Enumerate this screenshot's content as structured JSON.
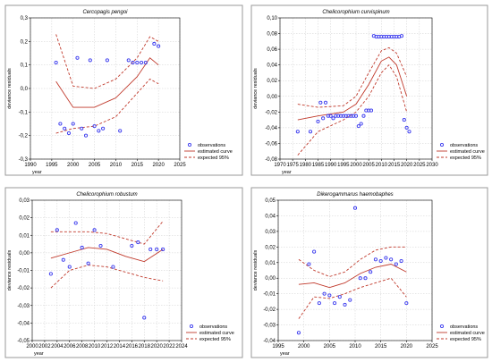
{
  "colors": {
    "observations": "#3a3aee",
    "curve": "#c0392b",
    "band": "#c0392b"
  },
  "chart_data": [
    {
      "type": "scatter",
      "title": "Cercopagis pengoi",
      "xlabel": "year",
      "ylabel": "deviance residuals",
      "xlim": [
        1990,
        2025
      ],
      "ylim": [
        -0.3,
        0.3
      ],
      "xticks": [
        1990,
        1995,
        2000,
        2005,
        2010,
        2015,
        2020,
        2025
      ],
      "xtick_labels": [
        "1990",
        "1995",
        "2000",
        "2005",
        "2010",
        "2015",
        "2020",
        "2025"
      ],
      "yticks": [
        -0.3,
        -0.2,
        -0.1,
        0,
        0.1,
        0.2,
        0.3
      ],
      "ytick_labels": [
        "-0,3",
        "-0,2",
        "-0,1",
        "0,0",
        "0,1",
        "0,2",
        "0,3"
      ],
      "grid": true,
      "legend": {
        "position": "bottom-right",
        "entries": [
          "observations",
          "estimated curve",
          "expected 95%"
        ]
      },
      "observations": {
        "x": [
          1996,
          1997,
          1998,
          1999,
          2000,
          2001,
          2002,
          2003,
          2004,
          2005,
          2006,
          2007,
          2008,
          2011,
          2013,
          2014,
          2015,
          2016,
          2017,
          2019,
          2020
        ],
        "y": [
          0.11,
          -0.15,
          -0.17,
          -0.19,
          -0.15,
          0.13,
          -0.17,
          -0.2,
          0.12,
          -0.16,
          -0.18,
          -0.17,
          0.12,
          -0.18,
          0.12,
          0.11,
          0.11,
          0.11,
          0.11,
          0.19,
          0.18
        ]
      },
      "estimated_curve": {
        "x": [
          1996,
          2000,
          2005,
          2010,
          2015,
          2018,
          2020
        ],
        "y": [
          0.03,
          -0.08,
          -0.08,
          -0.04,
          0.05,
          0.13,
          0.1
        ]
      },
      "upper_95": {
        "x": [
          1996,
          2000,
          2005,
          2010,
          2015,
          2018,
          2020
        ],
        "y": [
          0.23,
          0.01,
          0.0,
          0.04,
          0.13,
          0.22,
          0.2
        ]
      },
      "lower_95": {
        "x": [
          1996,
          2000,
          2005,
          2010,
          2015,
          2018,
          2020
        ],
        "y": [
          -0.19,
          -0.17,
          -0.16,
          -0.12,
          -0.02,
          0.04,
          0.02
        ]
      }
    },
    {
      "type": "scatter",
      "title": "Chelicorophium curvispinum",
      "xlabel": "year",
      "ylabel": "deviance residuals",
      "xlim": [
        1970,
        2030
      ],
      "ylim": [
        -0.08,
        0.1
      ],
      "xticks": [
        1970,
        1975,
        1980,
        1985,
        1990,
        1995,
        2000,
        2005,
        2010,
        2015,
        2020,
        2025,
        2030
      ],
      "xtick_labels": [
        "1970",
        "1975",
        "1980",
        "1985",
        "1990",
        "1995",
        "2000",
        "2005",
        "2010",
        "2015",
        "2020",
        "2025",
        "2030"
      ],
      "yticks": [
        -0.08,
        -0.06,
        -0.04,
        -0.02,
        0,
        0.02,
        0.04,
        0.06,
        0.08,
        0.1
      ],
      "ytick_labels": [
        "-0,08",
        "-0,06",
        "-0,04",
        "-0,02",
        "0,00",
        "0,02",
        "0,04",
        "0,06",
        "0,08",
        "0,10"
      ],
      "grid": true,
      "legend": {
        "position": "bottom-right",
        "entries": [
          "observations",
          "estimated curve",
          "expected 95%"
        ]
      },
      "observations": {
        "x": [
          1977,
          1982,
          1985,
          1986,
          1987,
          1988,
          1989,
          1990,
          1991,
          1992,
          1993,
          1994,
          1995,
          1996,
          1997,
          1998,
          1999,
          2000,
          2001,
          2002,
          2003,
          2004,
          2005,
          2006,
          2007,
          2008,
          2009,
          2010,
          2011,
          2012,
          2013,
          2014,
          2015,
          2016,
          2017,
          2018,
          2019,
          2020,
          2021
        ],
        "y": [
          -0.045,
          -0.045,
          -0.032,
          -0.008,
          -0.028,
          -0.008,
          -0.025,
          -0.025,
          -0.028,
          -0.025,
          -0.025,
          -0.025,
          -0.025,
          -0.025,
          -0.025,
          -0.025,
          -0.025,
          -0.025,
          -0.038,
          -0.035,
          -0.025,
          -0.018,
          -0.018,
          -0.018,
          0.077,
          0.076,
          0.076,
          0.076,
          0.076,
          0.076,
          0.076,
          0.076,
          0.076,
          0.076,
          0.076,
          0.077,
          -0.03,
          -0.04,
          -0.045
        ]
      },
      "estimated_curve": {
        "x": [
          1977,
          1985,
          1995,
          2000,
          2005,
          2010,
          2013,
          2016,
          2020
        ],
        "y": [
          -0.03,
          -0.025,
          -0.02,
          -0.01,
          0.015,
          0.045,
          0.05,
          0.04,
          0.0
        ]
      },
      "upper_95": {
        "x": [
          1977,
          1985,
          1995,
          2000,
          2005,
          2010,
          2013,
          2016,
          2020
        ],
        "y": [
          -0.01,
          -0.014,
          -0.012,
          0.0,
          0.03,
          0.058,
          0.062,
          0.055,
          0.025
        ]
      },
      "lower_95": {
        "x": [
          1977,
          1985,
          1995,
          2000,
          2005,
          2010,
          2013,
          2016,
          2020
        ],
        "y": [
          -0.075,
          -0.045,
          -0.03,
          -0.02,
          0.0,
          0.03,
          0.04,
          0.025,
          -0.02
        ]
      }
    },
    {
      "type": "scatter",
      "title": "Chelicorophium robustum",
      "xlabel": "year",
      "ylabel": "deviance residuals",
      "xlim": [
        2000,
        2024
      ],
      "ylim": [
        -0.05,
        0.03
      ],
      "xticks": [
        2000,
        2002,
        2004,
        2006,
        2008,
        2010,
        2012,
        2014,
        2016,
        2018,
        2020,
        2022,
        2024
      ],
      "xtick_labels": [
        "2000",
        "2002",
        "2004",
        "2006",
        "2008",
        "2010",
        "2012",
        "2014",
        "2016",
        "2018",
        "2020",
        "2022",
        "2024"
      ],
      "yticks": [
        -0.05,
        -0.04,
        -0.03,
        -0.02,
        -0.01,
        0,
        0.01,
        0.02,
        0.03
      ],
      "ytick_labels": [
        "-0,05",
        "-0,04",
        "-0,03",
        "-0,02",
        "-0,01",
        "0,00",
        "0,01",
        "0,02",
        "0,03"
      ],
      "grid": true,
      "legend": {
        "position": "bottom-right",
        "entries": [
          "observations",
          "estimated curve",
          "expected 95%"
        ]
      },
      "observations": {
        "x": [
          2003,
          2004,
          2005,
          2006,
          2007,
          2008,
          2009,
          2010,
          2011,
          2013,
          2016,
          2017,
          2018,
          2019,
          2020,
          2021
        ],
        "y": [
          -0.012,
          0.013,
          -0.004,
          -0.008,
          0.017,
          0.003,
          -0.006,
          0.013,
          0.004,
          -0.008,
          0.004,
          0.006,
          -0.037,
          0.002,
          0.002,
          0.002
        ]
      },
      "estimated_curve": {
        "x": [
          2003,
          2006,
          2009,
          2012,
          2015,
          2018,
          2021
        ],
        "y": [
          -0.003,
          0.0,
          0.003,
          0.002,
          -0.002,
          -0.005,
          0.002
        ]
      },
      "upper_95": {
        "x": [
          2003,
          2006,
          2009,
          2012,
          2015,
          2018,
          2021
        ],
        "y": [
          0.012,
          0.012,
          0.012,
          0.011,
          0.008,
          0.005,
          0.018
        ]
      },
      "lower_95": {
        "x": [
          2003,
          2006,
          2009,
          2012,
          2015,
          2018,
          2021
        ],
        "y": [
          -0.02,
          -0.01,
          -0.007,
          -0.008,
          -0.011,
          -0.014,
          -0.016
        ]
      }
    },
    {
      "type": "scatter",
      "title": "Dikerogammarus haemobaphes",
      "xlabel": "year",
      "ylabel": "deviance residuals",
      "xlim": [
        1995,
        2025
      ],
      "ylim": [
        -0.04,
        0.05
      ],
      "xticks": [
        1995,
        2000,
        2005,
        2010,
        2015,
        2020,
        2025
      ],
      "xtick_labels": [
        "1995",
        "2000",
        "2005",
        "2010",
        "2015",
        "2020",
        "2025"
      ],
      "yticks": [
        -0.04,
        -0.03,
        -0.02,
        -0.01,
        0,
        0.01,
        0.02,
        0.03,
        0.04,
        0.05
      ],
      "ytick_labels": [
        "-0,04",
        "-0,03",
        "-0,02",
        "-0,01",
        "0,00",
        "0,01",
        "0,02",
        "0,03",
        "0,04",
        "0,05"
      ],
      "grid": true,
      "legend": {
        "position": "bottom-right",
        "entries": [
          "observations",
          "estimated curve",
          "expected 95%"
        ]
      },
      "observations": {
        "x": [
          1999,
          2001,
          2002,
          2003,
          2004,
          2005,
          2006,
          2007,
          2008,
          2009,
          2010,
          2011,
          2012,
          2013,
          2014,
          2015,
          2016,
          2017,
          2018,
          2019,
          2020
        ],
        "y": [
          -0.035,
          0.009,
          0.017,
          -0.016,
          -0.01,
          -0.011,
          -0.016,
          -0.012,
          -0.017,
          -0.014,
          0.045,
          0.0,
          0.0,
          0.004,
          0.012,
          0.011,
          0.013,
          0.012,
          0.009,
          0.011,
          -0.016
        ]
      },
      "estimated_curve": {
        "x": [
          1999,
          2002,
          2005,
          2008,
          2011,
          2014,
          2017,
          2020
        ],
        "y": [
          -0.004,
          -0.003,
          -0.006,
          -0.003,
          0.003,
          0.007,
          0.009,
          0.004
        ]
      },
      "upper_95": {
        "x": [
          1999,
          2002,
          2005,
          2008,
          2011,
          2014,
          2017,
          2020
        ],
        "y": [
          0.012,
          0.005,
          0.001,
          0.004,
          0.012,
          0.018,
          0.02,
          0.02
        ]
      },
      "lower_95": {
        "x": [
          1999,
          2002,
          2005,
          2008,
          2011,
          2014,
          2017,
          2020
        ],
        "y": [
          -0.026,
          -0.012,
          -0.013,
          -0.01,
          -0.006,
          -0.003,
          0.0,
          -0.012
        ]
      }
    }
  ]
}
